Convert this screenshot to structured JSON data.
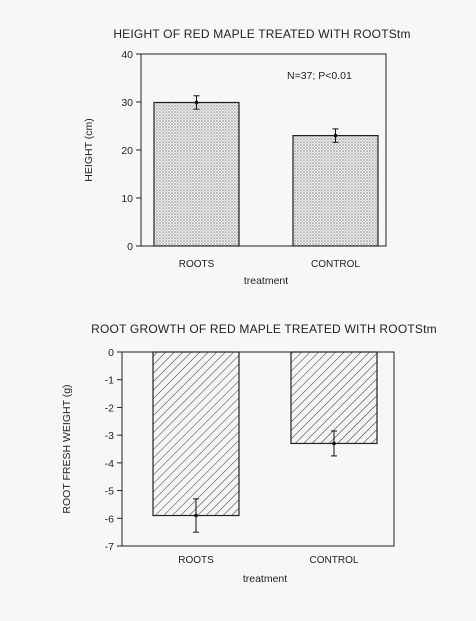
{
  "chart_data": [
    {
      "type": "bar",
      "title": "HEIGHT OF RED MAPLE TREATED WITH ROOTStm",
      "xlabel": "treatment",
      "ylabel": "HEIGHT (cm)",
      "categories": [
        "ROOTS",
        "CONTROL"
      ],
      "values": [
        29.9,
        23.0
      ],
      "error": [
        1.4,
        1.4
      ],
      "ylim": [
        0,
        40
      ],
      "yticks": [
        0,
        10,
        20,
        30,
        40
      ],
      "annotation": "N=37; P<0.01",
      "fill": "dotted",
      "grid": false
    },
    {
      "type": "bar",
      "title": "ROOT GROWTH OF RED MAPLE TREATED WITH ROOTStm",
      "xlabel": "treatment",
      "ylabel": "ROOT FRESH WEIGHT (g)",
      "categories": [
        "ROOTS",
        "CONTROL"
      ],
      "values": [
        -5.9,
        -3.3
      ],
      "error": [
        0.6,
        0.45
      ],
      "ylim": [
        -7,
        0
      ],
      "yticks": [
        0,
        -1,
        -2,
        -3,
        -4,
        -5,
        -6,
        -7
      ],
      "fill": "hatched",
      "grid": false
    }
  ]
}
